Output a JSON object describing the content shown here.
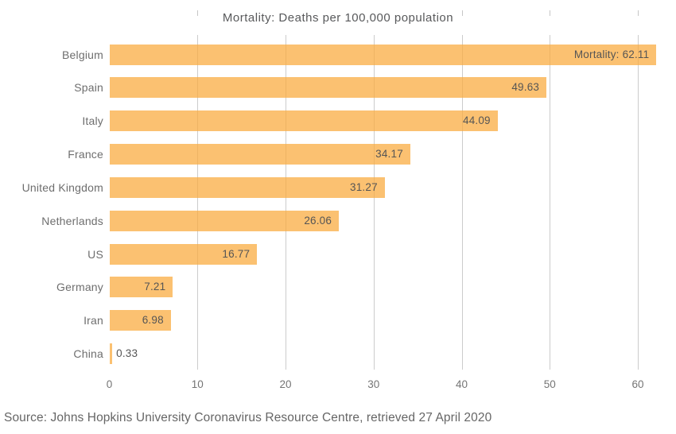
{
  "title": "Mortality: Deaths per 100,000 population",
  "source": "Source: Johns Hopkins University Coronavirus Resource Centre, retrieved 27 April 2020",
  "colors": {
    "bar_fill": "rgba(250,172,66,0.75)",
    "bar_fill_flat": "#FBC171",
    "gridline": "#cccccc",
    "title_text": "#58595b",
    "category_text": "#6e6e6e",
    "value_text": "#555555",
    "axis_text": "#757575",
    "source_text": "#666666"
  },
  "chart_data": {
    "type": "bar",
    "orientation": "horizontal",
    "title": "Mortality: Deaths per 100,000 population",
    "categories": [
      "Belgium",
      "Spain",
      "Italy",
      "France",
      "United Kingdom",
      "Netherlands",
      "US",
      "Germany",
      "Iran",
      "China"
    ],
    "values": [
      62.11,
      49.63,
      44.09,
      34.17,
      31.27,
      26.06,
      16.77,
      7.21,
      6.98,
      0.33
    ],
    "value_labels": [
      "Mortality: 62.11",
      "49.63",
      "44.09",
      "34.17",
      "31.27",
      "26.06",
      "16.77",
      "7.21",
      "6.98",
      "0.33"
    ],
    "x_ticks": [
      0,
      10,
      20,
      30,
      40,
      50,
      60
    ],
    "xlim": [
      0,
      62.4
    ],
    "xlabel": "",
    "ylabel": "",
    "grid": "vertical-only",
    "legend": "none",
    "annotation": "Series label shown on first bar",
    "source": "Source: Johns Hopkins University Coronavirus Resource Centre, retrieved 27 April 2020"
  }
}
